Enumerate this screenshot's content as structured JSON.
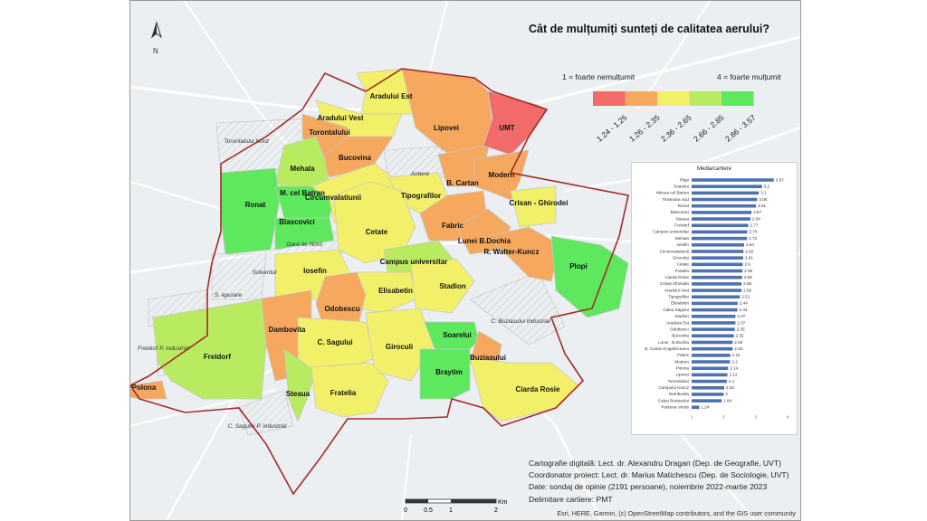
{
  "title": "Cât de mulțumiți sunteți de calitatea aerului?",
  "north_label": "N",
  "legend": {
    "min_label": "1 = foarte nemulțumit",
    "max_label": "4 = foarte mulțumit",
    "classes": [
      {
        "label": "1.24 - 1.25",
        "color": "#f26a6a"
      },
      {
        "label": "1.26 - 2.35",
        "color": "#f5a85e"
      },
      {
        "label": "2.36 - 2.65",
        "color": "#f2f069"
      },
      {
        "label": "2.66 - 2.85",
        "color": "#b9eb60"
      },
      {
        "label": "2.86 - 3.57",
        "color": "#5de85e"
      }
    ]
  },
  "districts": [
    {
      "name": "Aradului Est",
      "cls": 2
    },
    {
      "name": "Aradului Vest",
      "cls": 2
    },
    {
      "name": "Torontalului",
      "cls": 1
    },
    {
      "name": "Lipovei",
      "cls": 1
    },
    {
      "name": "UMT",
      "cls": 0
    },
    {
      "name": "Bucovina",
      "cls": 1
    },
    {
      "name": "Mehala",
      "cls": 3
    },
    {
      "name": "Ronat",
      "cls": 4
    },
    {
      "name": "M. cel Batran",
      "cls": 4
    },
    {
      "name": "Circumvalatiunii",
      "cls": 2
    },
    {
      "name": "Tipografilor",
      "cls": 2
    },
    {
      "name": "B. Cartan",
      "cls": 1
    },
    {
      "name": "Modern",
      "cls": 1
    },
    {
      "name": "Crisan - Ghirodei",
      "cls": 2
    },
    {
      "name": "Blascovici",
      "cls": 4
    },
    {
      "name": "Cetate",
      "cls": 2
    },
    {
      "name": "Fabric",
      "cls": 1
    },
    {
      "name": "Lunei B.Dochia",
      "cls": 1
    },
    {
      "name": "R. Walter-Kuncz",
      "cls": 1
    },
    {
      "name": "Plopi",
      "cls": 4
    },
    {
      "name": "Iosefin",
      "cls": 2
    },
    {
      "name": "Campus universitar",
      "cls": 3
    },
    {
      "name": "Elisabetin",
      "cls": 2
    },
    {
      "name": "Stadion",
      "cls": 2
    },
    {
      "name": "Odobescu",
      "cls": 1
    },
    {
      "name": "Dambovita",
      "cls": 1
    },
    {
      "name": "C. Sagului",
      "cls": 2
    },
    {
      "name": "Giroculi",
      "cls": 2
    },
    {
      "name": "Soarelui",
      "cls": 4
    },
    {
      "name": "Buziasului",
      "cls": 1
    },
    {
      "name": "Freidorf",
      "cls": 3
    },
    {
      "name": "Polona",
      "cls": 1
    },
    {
      "name": "Steaua",
      "cls": 3
    },
    {
      "name": "Fratelia",
      "cls": 2
    },
    {
      "name": "Braytim",
      "cls": 4
    },
    {
      "name": "Ciarda Rosie",
      "cls": 2
    }
  ],
  "other_labels": [
    "Torontalului Nord",
    "Antene",
    "Gara de Nord",
    "Solventul",
    "S. epurare",
    "C. Buziasului industrial",
    "Freidorf P. industrial",
    "C. Sagului P. industrial"
  ],
  "chart_data": {
    "type": "bar",
    "title": "Media/cartiere",
    "categories": [
      "Plopi",
      "Soarelui",
      "Mircea cel Batran",
      "Timisoara Sud",
      "Ronat",
      "Blascovici",
      "Steaua",
      "Freidorf",
      "Campus universitar",
      "Mehala",
      "Iosefin",
      "Circumvalatiunii",
      "Girocului",
      "Cetate",
      "Fratelia",
      "Ciarda Rosie",
      "Crisan-Ghirodei",
      "Aradului Vest",
      "Tipografilor",
      "Elisabetin",
      "Calea Sagului",
      "Stadion",
      "Aradului Est",
      "Odobescu",
      "Bucovina",
      "Lunei - B.Dochia",
      "B. Cartan-Kogalniceanu",
      "Fabric",
      "Modern",
      "Polona",
      "Lipovei",
      "Torontalului",
      "Campului Kuncz",
      "Dambovita",
      "Calea Buziasului",
      "Padurea Verde"
    ],
    "values": [
      3.57,
      3.2,
      3.1,
      3.05,
      3.01,
      2.87,
      2.84,
      2.77,
      2.74,
      2.73,
      2.64,
      2.62,
      2.61,
      2.6,
      2.59,
      2.58,
      2.56,
      2.56,
      2.51,
      2.44,
      2.43,
      2.37,
      2.37,
      2.35,
      2.32,
      2.28,
      2.28,
      2.21,
      2.2,
      2.14,
      2.12,
      2.1,
      2.02,
      2,
      1.94,
      1.24
    ],
    "xlim": [
      1,
      4
    ],
    "xticks": [
      1,
      2,
      3,
      4
    ],
    "bar_color": "#4f71b0"
  },
  "credits": [
    "Cartografie digitală: Lect. dr. Alexandru Dragan (Dep. de Geografie, UVT)",
    "Coordonator proiect: Lect. dr. Marius Matichescu (Dep. de Sociologie, UVT)",
    "Date: sondaj de opinie (2191 persoane), noiembrie 2022-martie 2023",
    "Delimitare cartiere: PMT"
  ],
  "attribution": "Esri, HERE, Garmin, (c) OpenStreetMap contributors, and the GIS user community",
  "scale": {
    "ticks": [
      "0",
      "0.5",
      "1",
      "2"
    ],
    "unit": "Km"
  }
}
